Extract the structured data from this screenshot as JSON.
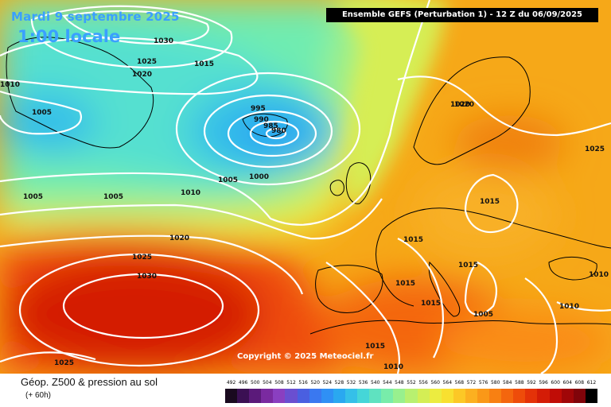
{
  "header": {
    "date": "Mardi 9 septembre 2025",
    "local_time": "1:00 locale",
    "run": "Ensemble GEFS  (Perturbation 1)  -  12 Z du 06/09/2025"
  },
  "copyright": "Copyright © 2025 Meteociel.fr",
  "footer": {
    "title": "Géop. Z500 & pression au sol",
    "step": "(+ 60h)"
  },
  "legend": {
    "labels": [
      "492",
      "496",
      "500",
      "504",
      "508",
      "512",
      "516",
      "520",
      "524",
      "528",
      "532",
      "536",
      "540",
      "544",
      "548",
      "552",
      "556",
      "560",
      "564",
      "568",
      "572",
      "576",
      "580",
      "584",
      "588",
      "592",
      "596",
      "600",
      "604",
      "608",
      "612"
    ],
    "colors": [
      "#1a0a1f",
      "#3b1053",
      "#5b1a7a",
      "#7a2aa0",
      "#8a3fc0",
      "#6a4fd0",
      "#4a5fe0",
      "#3a78f0",
      "#2f90f5",
      "#2aa8f0",
      "#35c0e8",
      "#45d6d8",
      "#5fe2c0",
      "#78ecaa",
      "#98f08e",
      "#b8f070",
      "#d4ee55",
      "#ecec40",
      "#f8e030",
      "#fcc826",
      "#fcb020",
      "#fa9818",
      "#f88012",
      "#f4660e",
      "#ee4c0a",
      "#e43208",
      "#d41c06",
      "#c00c06",
      "#a00608",
      "#80040a",
      "#000000"
    ]
  },
  "isobars": {
    "labels": [
      "1030",
      "1025",
      "1020",
      "1015",
      "1010",
      "1005",
      "995",
      "990",
      "985",
      "980",
      "1005",
      "1000",
      "1005",
      "1005",
      "1010",
      "1020",
      "1025",
      "1030",
      "1025",
      "1020",
      "1015",
      "1015",
      "1015",
      "1015",
      "1015",
      "1020",
      "1025",
      "1010",
      "1010",
      "1015",
      "1010",
      "1005"
    ]
  }
}
